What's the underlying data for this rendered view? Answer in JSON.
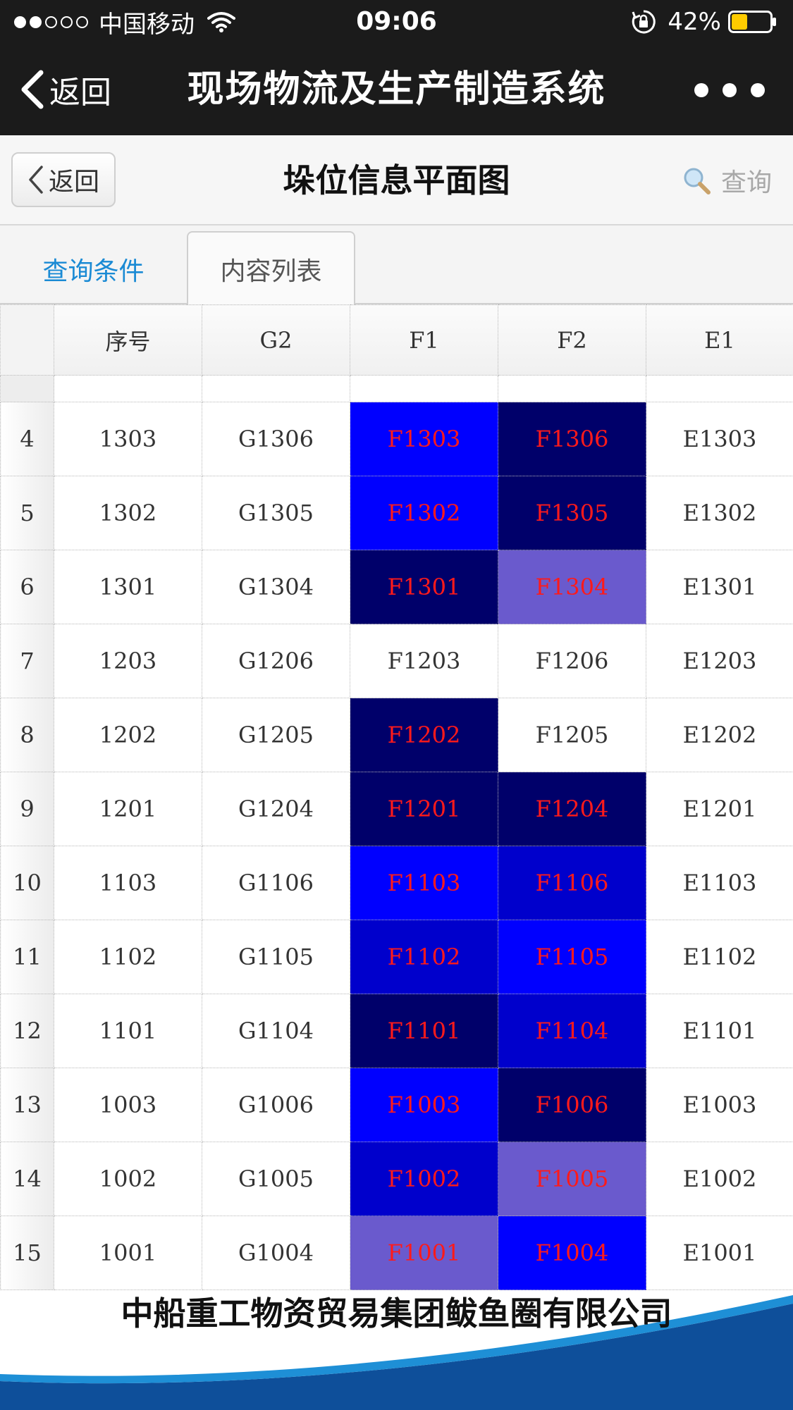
{
  "status_bar": {
    "carrier": "中国移动",
    "time": "09:06",
    "battery": "42%",
    "battery_level": 0.42
  },
  "nav": {
    "back_label": "返回",
    "title": "现场物流及生产制造系统"
  },
  "page_header": {
    "back_label": "返回",
    "title": "垛位信息平面图",
    "search_label": "查询"
  },
  "tabs": [
    {
      "label": "查询条件",
      "active": false
    },
    {
      "label": "内容列表",
      "active": true
    }
  ],
  "table": {
    "headers": [
      "",
      "序号",
      "G2",
      "F1",
      "F2",
      "E1"
    ],
    "colors": {
      "bright_blue": "#0000ff",
      "mid_blue": "#0000cc",
      "navy": "#00006a",
      "slate_blue": "#6a5acd",
      "highlight_text": "#ff1a1a"
    },
    "rows": [
      {
        "idx": "4",
        "seq": "1303",
        "g2": "G1306",
        "f1": "F1303",
        "f1_bg": "#0000ff",
        "f2": "F1306",
        "f2_bg": "#00006a",
        "e1": "E1303"
      },
      {
        "idx": "5",
        "seq": "1302",
        "g2": "G1305",
        "f1": "F1302",
        "f1_bg": "#0000ff",
        "f2": "F1305",
        "f2_bg": "#00006a",
        "e1": "E1302"
      },
      {
        "idx": "6",
        "seq": "1301",
        "g2": "G1304",
        "f1": "F1301",
        "f1_bg": "#00006a",
        "f2": "F1304",
        "f2_bg": "#6a5acd",
        "e1": "E1301"
      },
      {
        "idx": "7",
        "seq": "1203",
        "g2": "G1206",
        "f1": "F1203",
        "f1_bg": "",
        "f2": "F1206",
        "f2_bg": "",
        "e1": "E1203"
      },
      {
        "idx": "8",
        "seq": "1202",
        "g2": "G1205",
        "f1": "F1202",
        "f1_bg": "#00006a",
        "f2": "F1205",
        "f2_bg": "",
        "e1": "E1202"
      },
      {
        "idx": "9",
        "seq": "1201",
        "g2": "G1204",
        "f1": "F1201",
        "f1_bg": "#00006a",
        "f2": "F1204",
        "f2_bg": "#00006a",
        "e1": "E1201"
      },
      {
        "idx": "10",
        "seq": "1103",
        "g2": "G1106",
        "f1": "F1103",
        "f1_bg": "#0000ff",
        "f2": "F1106",
        "f2_bg": "#0000cc",
        "e1": "E1103"
      },
      {
        "idx": "11",
        "seq": "1102",
        "g2": "G1105",
        "f1": "F1102",
        "f1_bg": "#0000cc",
        "f2": "F1105",
        "f2_bg": "#0000ff",
        "e1": "E1102"
      },
      {
        "idx": "12",
        "seq": "1101",
        "g2": "G1104",
        "f1": "F1101",
        "f1_bg": "#00006a",
        "f2": "F1104",
        "f2_bg": "#0000cc",
        "e1": "E1101"
      },
      {
        "idx": "13",
        "seq": "1003",
        "g2": "G1006",
        "f1": "F1003",
        "f1_bg": "#0000ff",
        "f2": "F1006",
        "f2_bg": "#00006a",
        "e1": "E1003"
      },
      {
        "idx": "14",
        "seq": "1002",
        "g2": "G1005",
        "f1": "F1002",
        "f1_bg": "#0000cc",
        "f2": "F1005",
        "f2_bg": "#6a5acd",
        "e1": "E1002"
      },
      {
        "idx": "15",
        "seq": "1001",
        "g2": "G1004",
        "f1": "F1001",
        "f1_bg": "#6a5acd",
        "f2": "F1004",
        "f2_bg": "#0000ff",
        "e1": "E1001"
      }
    ]
  },
  "footer": {
    "company": "中船重工物资贸易集团鲅鱼圈有限公司",
    "wave_color": "#1e8fd6",
    "band_color": "#0e4f9a"
  },
  "icons": {
    "signal": "signal-dots-icon",
    "wifi": "wifi-icon",
    "lock": "rotation-lock-icon",
    "battery": "battery-icon",
    "back": "chevron-left-icon",
    "more": "more-dots-icon",
    "search": "magnifier-icon"
  }
}
